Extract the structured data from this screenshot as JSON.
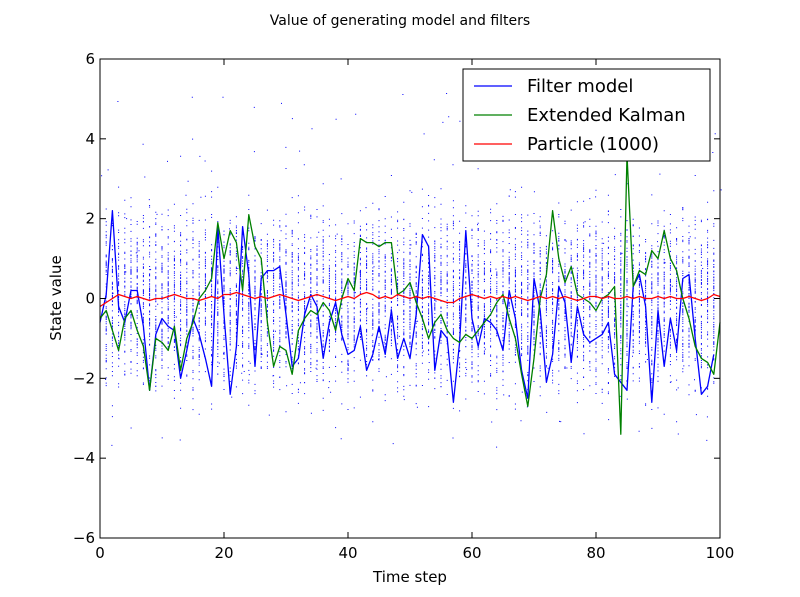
{
  "chart_data": {
    "type": "line",
    "title": "Value of generating model and filters",
    "xlabel": "Time step",
    "ylabel": "State value",
    "xlim": [
      0,
      100
    ],
    "ylim": [
      -6,
      6
    ],
    "x_ticks": [
      "0",
      "20",
      "40",
      "60",
      "80",
      "100"
    ],
    "y_ticks": [
      "−6",
      "−4",
      "−2",
      "0",
      "2",
      "4",
      "6"
    ],
    "grid": false,
    "legend_position": "top-right",
    "series": [
      {
        "name": "Filter model",
        "color": "#0000ff",
        "x": [
          0,
          1,
          2,
          3,
          4,
          5,
          6,
          7,
          8,
          9,
          10,
          11,
          12,
          13,
          14,
          15,
          16,
          17,
          18,
          19,
          20,
          21,
          22,
          23,
          24,
          25,
          26,
          27,
          28,
          29,
          30,
          31,
          32,
          33,
          34,
          35,
          36,
          37,
          38,
          39,
          40,
          41,
          42,
          43,
          44,
          45,
          46,
          47,
          48,
          49,
          50,
          51,
          52,
          53,
          54,
          55,
          56,
          57,
          58,
          59,
          60,
          61,
          62,
          63,
          64,
          65,
          66,
          67,
          68,
          69,
          70,
          71,
          72,
          73,
          74,
          75,
          76,
          77,
          78,
          79,
          80,
          81,
          82,
          83,
          84,
          85,
          86,
          87,
          88,
          89,
          90,
          91,
          92,
          93,
          94,
          95,
          96,
          97,
          98,
          99
        ],
        "y": [
          -0.6,
          0.1,
          2.2,
          -0.2,
          -0.6,
          0.2,
          0.2,
          -0.7,
          -2.3,
          -0.9,
          -0.5,
          -0.7,
          -0.8,
          -2.0,
          -1.3,
          -0.5,
          -0.9,
          -1.5,
          -2.2,
          1.8,
          -0.4,
          -2.4,
          -1.2,
          1.8,
          0.6,
          -1.7,
          0.5,
          0.7,
          0.7,
          0.8,
          -0.4,
          -1.7,
          -1.5,
          -0.4,
          0.1,
          -0.2,
          -1.5,
          -0.6,
          -0.1,
          -0.9,
          -1.4,
          -1.3,
          -0.7,
          -1.8,
          -1.4,
          -0.7,
          -1.4,
          -0.3,
          -1.5,
          -1.0,
          -1.5,
          -0.4,
          1.6,
          1.3,
          -1.8,
          -0.8,
          -1.0,
          -2.6,
          -1.1,
          1.7,
          -0.5,
          -1.2,
          -0.5,
          -0.6,
          -0.8,
          -1.3,
          0.2,
          -0.5,
          -1.8,
          -2.5,
          0.5,
          -0.3,
          -2.1,
          -1.4,
          0.3,
          -0.1,
          -1.6,
          -0.2,
          -0.9,
          -1.1,
          -1.0,
          -0.9,
          -0.6,
          -1.9,
          -2.1,
          -2.3,
          0.3,
          0.6,
          -0.2,
          -2.6,
          -0.3,
          -1.7,
          -0.5,
          -1.3,
          0.5,
          0.6,
          -1.0,
          -2.4,
          -2.2,
          -1.4
        ]
      },
      {
        "name": "Extended Kalman",
        "color": "#008000",
        "x": [
          0,
          1,
          2,
          3,
          4,
          5,
          6,
          7,
          8,
          9,
          10,
          11,
          12,
          13,
          14,
          15,
          16,
          17,
          18,
          19,
          20,
          21,
          22,
          23,
          24,
          25,
          26,
          27,
          28,
          29,
          30,
          31,
          32,
          33,
          34,
          35,
          36,
          37,
          38,
          39,
          40,
          41,
          42,
          43,
          44,
          45,
          46,
          47,
          48,
          49,
          50,
          51,
          52,
          53,
          54,
          55,
          56,
          57,
          58,
          59,
          60,
          61,
          62,
          63,
          64,
          65,
          66,
          67,
          68,
          69,
          70,
          71,
          72,
          73,
          74,
          75,
          76,
          77,
          78,
          79,
          80,
          81,
          82,
          83,
          84,
          85,
          86,
          87,
          88,
          89,
          90,
          91,
          92,
          93,
          94,
          95,
          96,
          97,
          98,
          99,
          100
        ],
        "y": [
          -0.5,
          -0.3,
          -0.8,
          -1.3,
          -0.5,
          -0.3,
          -0.8,
          -1.2,
          -2.3,
          -1.0,
          -1.1,
          -1.3,
          -0.7,
          -1.8,
          -1.0,
          -0.6,
          0.0,
          0.2,
          0.5,
          1.9,
          1.0,
          1.7,
          1.4,
          0.2,
          2.1,
          1.3,
          1.0,
          -0.6,
          -1.7,
          -1.2,
          -1.3,
          -1.9,
          -0.8,
          -0.5,
          -0.3,
          -0.4,
          -0.1,
          -0.3,
          -0.8,
          0.0,
          0.5,
          0.2,
          1.5,
          1.4,
          1.4,
          1.3,
          1.4,
          1.4,
          0.1,
          0.2,
          0.4,
          -0.1,
          -0.5,
          -1.0,
          -0.6,
          -0.4,
          -0.8,
          -1.0,
          -1.1,
          -0.9,
          -1.0,
          -0.8,
          -0.6,
          -0.4,
          -0.1,
          0.1,
          -0.5,
          -1.0,
          -1.9,
          -2.7,
          -1.5,
          0.0,
          0.6,
          2.2,
          1.0,
          0.4,
          0.8,
          0.1,
          0.0,
          -0.1,
          -0.3,
          0.0,
          0.1,
          0.3,
          -3.4,
          3.6,
          0.3,
          0.7,
          0.6,
          1.2,
          1.0,
          1.7,
          1.0,
          0.7,
          0.0,
          -0.5,
          -1.2,
          -1.5,
          -1.6,
          -1.9,
          -0.6
        ]
      },
      {
        "name": "Particle (1000)",
        "color": "#ff0000",
        "x": [
          0,
          1,
          2,
          3,
          4,
          5,
          6,
          7,
          8,
          9,
          10,
          11,
          12,
          13,
          14,
          15,
          16,
          17,
          18,
          19,
          20,
          21,
          22,
          23,
          24,
          25,
          26,
          27,
          28,
          29,
          30,
          31,
          32,
          33,
          34,
          35,
          36,
          37,
          38,
          39,
          40,
          41,
          42,
          43,
          44,
          45,
          46,
          47,
          48,
          49,
          50,
          51,
          52,
          53,
          54,
          55,
          56,
          57,
          58,
          59,
          60,
          61,
          62,
          63,
          64,
          65,
          66,
          67,
          68,
          69,
          70,
          71,
          72,
          73,
          74,
          75,
          76,
          77,
          78,
          79,
          80,
          81,
          82,
          83,
          84,
          85,
          86,
          87,
          88,
          89,
          90,
          91,
          92,
          93,
          94,
          95,
          96,
          97,
          98,
          99,
          100
        ],
        "y": [
          -0.2,
          -0.1,
          0.0,
          0.1,
          0.05,
          0.0,
          0.05,
          0.0,
          -0.05,
          0.0,
          0.0,
          0.05,
          0.1,
          0.05,
          0.0,
          0.0,
          -0.05,
          0.0,
          0.05,
          0.0,
          0.1,
          0.1,
          0.15,
          0.1,
          0.05,
          0.0,
          0.05,
          0.0,
          0.05,
          0.1,
          0.05,
          0.0,
          -0.05,
          0.0,
          0.05,
          0.1,
          0.05,
          0.0,
          -0.05,
          0.0,
          0.05,
          0.0,
          0.1,
          0.15,
          0.1,
          0.0,
          0.05,
          0.0,
          0.1,
          0.05,
          0.0,
          0.05,
          0.0,
          0.05,
          0.0,
          -0.05,
          -0.1,
          -0.1,
          0.0,
          0.05,
          0.1,
          0.05,
          0.0,
          0.05,
          0.0,
          0.05,
          0.0,
          0.05,
          0.0,
          -0.05,
          0.0,
          0.05,
          0.0,
          0.05,
          0.0,
          0.05,
          0.0,
          -0.05,
          0.0,
          0.05,
          0.05,
          0.0,
          0.05,
          0.0,
          0.0,
          0.05,
          0.0,
          0.05,
          0.0,
          0.0,
          0.05,
          0.0,
          0.05,
          0.0,
          0.0,
          0.05,
          0.0,
          -0.05,
          0.0,
          0.1,
          0.05
        ]
      }
    ],
    "particle_cloud": {
      "color": "#0000ff",
      "x_range": [
        0,
        100
      ],
      "spread": [
        -3.5,
        3.5
      ],
      "outlier_range": [
        -5,
        5
      ]
    }
  }
}
